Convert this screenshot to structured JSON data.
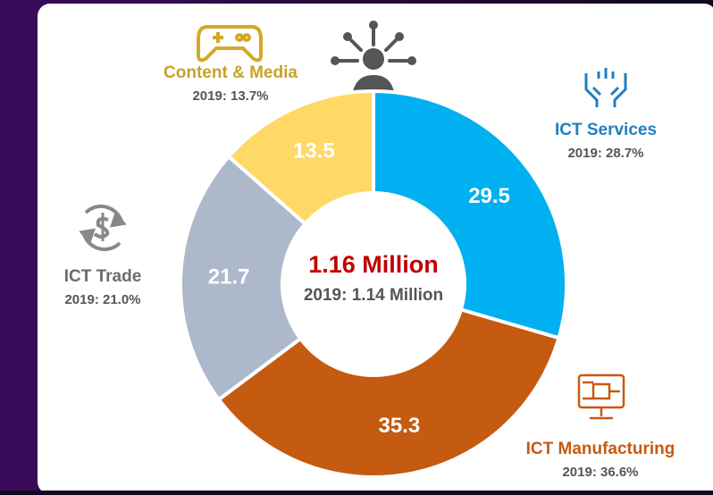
{
  "chart_data": {
    "type": "donut",
    "categories": [
      "ICT Services",
      "ICT Manufacturing",
      "ICT Trade",
      "Content & Media"
    ],
    "values": [
      29.5,
      35.3,
      21.7,
      13.5
    ],
    "colors": [
      "#00b0f0",
      "#c55a11",
      "#adb9ca",
      "#ffd966"
    ],
    "label_colors": [
      "#1f7fc0",
      "#c55a11",
      "#6b6b6b",
      "#c9a227"
    ],
    "previous": [
      "2019: 28.7%",
      "2019: 36.6%",
      "2019: 21.0%",
      "2019: 13.7%"
    ],
    "center_label": "1.16 Million",
    "center_sublabel": "2019: 1.14 Million"
  }
}
